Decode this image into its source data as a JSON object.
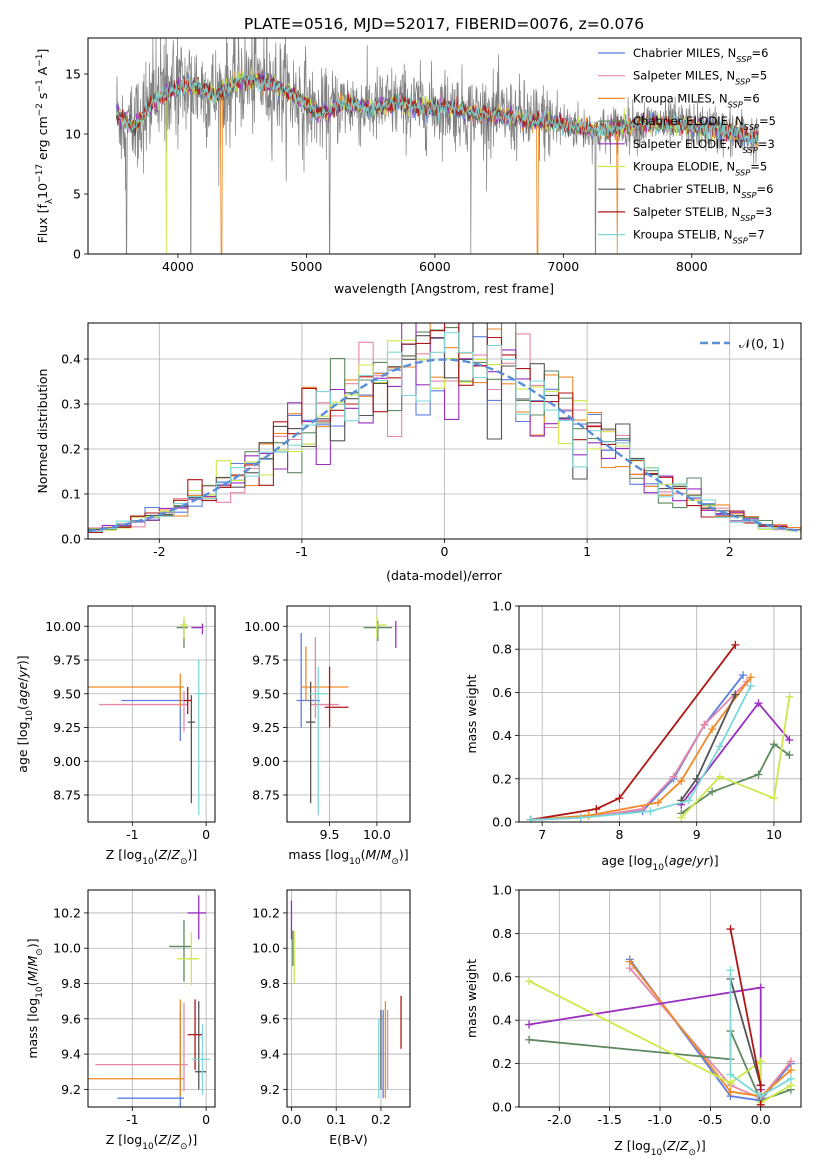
{
  "figure_title": "PLATE=0516, MJD=52017, FIBERID=0076, z=0.076",
  "series": [
    {
      "name": "Chabrier MILES",
      "nssp": "6",
      "color": "#5b7fe0"
    },
    {
      "name": "Salpeter MILES",
      "nssp": "5",
      "color": "#e887a8"
    },
    {
      "name": "Kroupa MILES",
      "nssp": "6",
      "color": "#f08a28"
    },
    {
      "name": "Chabrier ELODIE",
      "nssp": "5",
      "color": "#5e8a60"
    },
    {
      "name": "Salpeter ELODIE",
      "nssp": "3",
      "color": "#9a2fc0"
    },
    {
      "name": "Kroupa ELODIE",
      "nssp": "5",
      "color": "#cde84a"
    },
    {
      "name": "Chabrier STELIB",
      "nssp": "6",
      "color": "#555555"
    },
    {
      "name": "Salpeter STELIB",
      "nssp": "3",
      "color": "#b01616"
    },
    {
      "name": "Kroupa STELIB",
      "nssp": "7",
      "color": "#7fd8d8"
    }
  ],
  "chart_data": [
    {
      "id": "spectrum",
      "type": "line",
      "xlabel": "wavelength [Angstrom, rest frame]",
      "ylabel": "Flux [f_λ10^-17 erg cm^-2 s^-1 A^-1]",
      "xlim": [
        3300,
        8850
      ],
      "ylim": [
        0,
        18
      ],
      "xticks": [
        4000,
        5000,
        6000,
        7000,
        8000
      ],
      "yticks": [
        0,
        5,
        10,
        15
      ],
      "grid": false,
      "legend": "top-right",
      "legend_suffix": "N_SSP",
      "data_color": "#808080",
      "continuum": {
        "x": [
          3500,
          3650,
          3800,
          3950,
          4100,
          4300,
          4500,
          4700,
          4900,
          5100,
          5300,
          5500,
          5700,
          5900,
          6100,
          6300,
          6500,
          6700,
          6900,
          7100,
          7300,
          7500,
          7700,
          7900,
          8100,
          8300,
          8500
        ],
        "y": [
          12.0,
          10.5,
          12.6,
          13.6,
          14.2,
          13.2,
          14.6,
          14.3,
          13.2,
          11.7,
          12.6,
          12.1,
          12.6,
          12.2,
          12.3,
          11.7,
          11.6,
          11.2,
          11.0,
          10.6,
          10.2,
          10.7,
          10.9,
          10.7,
          10.5,
          10.2,
          9.6
        ]
      },
      "model_dips": [
        {
          "series": 2,
          "x": 4340
        },
        {
          "series": 2,
          "x": 6800
        },
        {
          "series": 2,
          "x": 7420
        },
        {
          "series": 5,
          "x": 3910
        }
      ],
      "data_dips": [
        3600,
        4100,
        5180,
        6280,
        7250
      ]
    },
    {
      "id": "residuals",
      "type": "step",
      "xlabel": "(data-model)/error",
      "ylabel": "Normed distribution",
      "xlim": [
        -2.5,
        2.5
      ],
      "ylim": [
        0,
        0.48
      ],
      "xticks": [
        -2,
        -1,
        0,
        1,
        2
      ],
      "yticks": [
        0.0,
        0.1,
        0.2,
        0.3,
        0.4
      ],
      "grid": true,
      "legend": "top-right",
      "reference_label": "𝒩(0, 1)",
      "reference_color": "#5b8fd8",
      "bin_width": 0.1
    },
    {
      "id": "age-z",
      "type": "errorbar",
      "xlabel": "Z [log10(Z/Z⊙)]",
      "ylabel": "age [log10(age/yr)]",
      "xlim": [
        -1.6,
        0.12
      ],
      "ylim": [
        8.55,
        10.15
      ],
      "xticks": [
        -1,
        0
      ],
      "yticks": [
        8.75,
        9.0,
        9.25,
        9.5,
        9.75,
        10.0
      ],
      "grid": true,
      "points": [
        {
          "x": -0.35,
          "xerr": [
            0.8,
            0.05
          ],
          "y": 9.45,
          "yerr": [
            0.3,
            0.1
          ]
        },
        {
          "x": -0.3,
          "xerr": [
            1.15,
            0.05
          ],
          "y": 9.42,
          "yerr": [
            0.2,
            0.1
          ]
        },
        {
          "x": -0.35,
          "xerr": [
            1.5,
            0.05
          ],
          "y": 9.55,
          "yerr": [
            0.15,
            0.1
          ]
        },
        {
          "x": -0.3,
          "xerr": [
            0.1,
            0.05
          ],
          "y": 9.99,
          "yerr": [
            0.15,
            0.05
          ]
        },
        {
          "x": -0.05,
          "xerr": [
            0.15,
            0.0
          ],
          "y": 9.99,
          "yerr": [
            0.05,
            0.03
          ]
        },
        {
          "x": -0.3,
          "xerr": [
            0.05,
            0.05
          ],
          "y": 10.01,
          "yerr": [
            0.1,
            0.06
          ]
        },
        {
          "x": -0.2,
          "xerr": [
            0.05,
            0.05
          ],
          "y": 9.29,
          "yerr": [
            0.6,
            0.2
          ]
        },
        {
          "x": -0.25,
          "xerr": [
            0.05,
            0.05
          ],
          "y": 9.45,
          "yerr": [
            0.1,
            0.1
          ]
        },
        {
          "x": -0.1,
          "xerr": [
            0.05,
            0.1
          ],
          "y": 9.5,
          "yerr": [
            0.9,
            0.25
          ]
        }
      ]
    },
    {
      "id": "age-mass",
      "type": "errorbar",
      "xlabel": "mass [log10(M/M⊙)]",
      "ylabel": "",
      "xlim": [
        9.05,
        10.35
      ],
      "ylim": [
        8.55,
        10.15
      ],
      "xticks": [
        9.5,
        10.0
      ],
      "yticks": [
        8.75,
        9.0,
        9.25,
        9.5,
        9.75,
        10.0
      ],
      "grid": true,
      "points": [
        {
          "x": 9.2,
          "xerr": [
            0.05,
            0.2
          ],
          "y": 9.45,
          "yerr": [
            0.2,
            0.5
          ]
        },
        {
          "x": 9.35,
          "xerr": [
            0.05,
            0.25
          ],
          "y": 9.42,
          "yerr": [
            0.1,
            0.5
          ]
        },
        {
          "x": 9.25,
          "xerr": [
            0.05,
            0.45
          ],
          "y": 9.55,
          "yerr": [
            0.1,
            0.3
          ]
        },
        {
          "x": 10.01,
          "xerr": [
            0.15,
            0.15
          ],
          "y": 9.99,
          "yerr": [
            0.1,
            0.05
          ]
        },
        {
          "x": 10.2,
          "xerr": [
            0.0,
            0.0
          ],
          "y": 9.99,
          "yerr": [
            0.15,
            0.05
          ]
        },
        {
          "x": 10.0,
          "xerr": [
            0.0,
            0.1
          ],
          "y": 10.01,
          "yerr": [
            0.1,
            0.06
          ]
        },
        {
          "x": 9.3,
          "xerr": [
            0.05,
            0.05
          ],
          "y": 9.29,
          "yerr": [
            0.6,
            0.3
          ]
        },
        {
          "x": 9.5,
          "xerr": [
            0.05,
            0.2
          ],
          "y": 9.4,
          "yerr": [
            0.15,
            0.3
          ]
        },
        {
          "x": 9.38,
          "xerr": [
            0.1,
            0.1
          ],
          "y": 9.5,
          "yerr": [
            0.9,
            0.2
          ]
        }
      ]
    },
    {
      "id": "weight-age",
      "type": "line",
      "xlabel": "age [log10(age/yr)]",
      "ylabel": "mass weight",
      "xlim": [
        6.7,
        10.35
      ],
      "ylim": [
        0,
        1.0
      ],
      "xticks": [
        7,
        8,
        9,
        10
      ],
      "yticks": [
        0.0,
        0.2,
        0.4,
        0.6,
        0.8,
        1.0
      ],
      "grid": true,
      "series_points": [
        {
          "x": [
            6.85,
            7.5,
            8.3,
            8.7,
            9.1,
            9.6
          ],
          "y": [
            0.01,
            0.02,
            0.05,
            0.2,
            0.45,
            0.68
          ]
        },
        {
          "x": [
            6.85,
            7.5,
            8.3,
            8.7,
            9.1,
            9.65
          ],
          "y": [
            0.01,
            0.02,
            0.06,
            0.21,
            0.45,
            0.65
          ]
        },
        {
          "x": [
            6.85,
            7.6,
            8.5,
            8.8,
            9.2,
            9.7
          ],
          "y": [
            0.01,
            0.03,
            0.09,
            0.19,
            0.43,
            0.67
          ]
        },
        {
          "x": [
            8.8,
            9.2,
            9.8,
            10.0,
            10.2
          ],
          "y": [
            0.04,
            0.14,
            0.22,
            0.36,
            0.31
          ]
        },
        {
          "x": [
            8.8,
            9.8,
            10.2
          ],
          "y": [
            0.08,
            0.55,
            0.38
          ]
        },
        {
          "x": [
            8.8,
            9.3,
            10.0,
            10.2
          ],
          "y": [
            0.02,
            0.21,
            0.11,
            0.58
          ]
        },
        {
          "x": [
            8.8,
            9.0,
            9.5
          ],
          "y": [
            0.1,
            0.2,
            0.59
          ]
        },
        {
          "x": [
            6.85,
            7.7,
            8.0,
            9.5
          ],
          "y": [
            0.01,
            0.06,
            0.11,
            0.82
          ]
        },
        {
          "x": [
            6.85,
            7.5,
            8.4,
            8.9,
            9.3,
            9.7
          ],
          "y": [
            0.01,
            0.02,
            0.05,
            0.1,
            0.35,
            0.63
          ]
        }
      ]
    },
    {
      "id": "mass-z",
      "type": "errorbar",
      "xlabel": "Z [log10(Z/Z⊙)]",
      "ylabel": "mass [log10(M/M⊙)]",
      "xlim": [
        -1.6,
        0.12
      ],
      "ylim": [
        9.1,
        10.33
      ],
      "xticks": [
        -1,
        0
      ],
      "yticks": [
        9.2,
        9.4,
        9.6,
        9.8,
        10.0,
        10.2
      ],
      "grid": true,
      "points": [
        {
          "x": -0.35,
          "xerr": [
            0.85,
            0.05
          ],
          "y": 9.15,
          "yerr": [
            0.05,
            0.5
          ]
        },
        {
          "x": -0.3,
          "xerr": [
            1.2,
            0.05
          ],
          "y": 9.34,
          "yerr": [
            0.15,
            0.35
          ]
        },
        {
          "x": -0.35,
          "xerr": [
            1.5,
            0.05
          ],
          "y": 9.26,
          "yerr": [
            0.1,
            0.45
          ]
        },
        {
          "x": -0.3,
          "xerr": [
            0.2,
            0.1
          ],
          "y": 10.01,
          "yerr": [
            0.2,
            0.15
          ]
        },
        {
          "x": -0.1,
          "xerr": [
            0.15,
            0.1
          ],
          "y": 10.2,
          "yerr": [
            0.15,
            0.1
          ]
        },
        {
          "x": -0.2,
          "xerr": [
            0.2,
            0.1
          ],
          "y": 9.94,
          "yerr": [
            0.15,
            0.15
          ]
        },
        {
          "x": -0.1,
          "xerr": [
            0.05,
            0.1
          ],
          "y": 9.3,
          "yerr": [
            0.1,
            0.4
          ]
        },
        {
          "x": -0.15,
          "xerr": [
            0.1,
            0.1
          ],
          "y": 9.51,
          "yerr": [
            0.2,
            0.2
          ]
        },
        {
          "x": -0.05,
          "xerr": [
            0.15,
            0.1
          ],
          "y": 9.37,
          "yerr": [
            0.2,
            0.2
          ]
        }
      ]
    },
    {
      "id": "mass-ebv",
      "type": "errorbar",
      "xlabel": "E(B-V)",
      "ylabel": "",
      "xlim": [
        -0.01,
        0.265
      ],
      "ylim": [
        9.1,
        10.33
      ],
      "xticks": [
        0.0,
        0.1,
        0.2
      ],
      "yticks": [
        9.2,
        9.4,
        9.6,
        9.8,
        10.0,
        10.2
      ],
      "grid": true,
      "points": [
        {
          "x": 0.205,
          "xerr": [
            0.0,
            0.0
          ],
          "y": 9.4,
          "yerr": [
            0.25,
            0.25
          ]
        },
        {
          "x": 0.215,
          "xerr": [
            0.0,
            0.0
          ],
          "y": 9.45,
          "yerr": [
            0.25,
            0.2
          ]
        },
        {
          "x": 0.21,
          "xerr": [
            0.0,
            0.0
          ],
          "y": 9.45,
          "yerr": [
            0.3,
            0.25
          ]
        },
        {
          "x": 0.003,
          "xerr": [
            0.0,
            0.0
          ],
          "y": 10.0,
          "yerr": [
            0.1,
            0.1
          ]
        },
        {
          "x": 0.0,
          "xerr": [
            0.0,
            0.0
          ],
          "y": 10.15,
          "yerr": [
            0.1,
            0.12
          ]
        },
        {
          "x": 0.006,
          "xerr": [
            0.0,
            0.0
          ],
          "y": 9.95,
          "yerr": [
            0.15,
            0.15
          ]
        },
        {
          "x": 0.2,
          "xerr": [
            0.0,
            0.0
          ],
          "y": 9.4,
          "yerr": [
            0.2,
            0.25
          ]
        },
        {
          "x": 0.245,
          "xerr": [
            0.0,
            0.0
          ],
          "y": 9.58,
          "yerr": [
            0.15,
            0.15
          ]
        },
        {
          "x": 0.195,
          "xerr": [
            0.0,
            0.0
          ],
          "y": 9.4,
          "yerr": [
            0.25,
            0.2
          ]
        }
      ]
    },
    {
      "id": "weight-z",
      "type": "line",
      "xlabel": "Z [log10(Z/Z⊙)]",
      "ylabel": "mass weight",
      "xlim": [
        -2.4,
        0.4
      ],
      "ylim": [
        0,
        1.0
      ],
      "xticks": [
        -2.0,
        -1.5,
        -1.0,
        -0.5,
        0.0
      ],
      "yticks": [
        0.0,
        0.2,
        0.4,
        0.6,
        0.8,
        1.0
      ],
      "grid": true,
      "series_points": [
        {
          "x": [
            -1.3,
            -0.3,
            0.0,
            0.3
          ],
          "y": [
            0.68,
            0.05,
            0.03,
            0.2
          ]
        },
        {
          "x": [
            -1.3,
            -0.3,
            0.0,
            0.3
          ],
          "y": [
            0.64,
            0.1,
            0.04,
            0.21
          ]
        },
        {
          "x": [
            -1.3,
            -0.3,
            0.0,
            0.3
          ],
          "y": [
            0.67,
            0.07,
            0.05,
            0.17
          ]
        },
        {
          "x": [
            -2.3,
            -0.3,
            -0.3,
            0.0,
            0.3
          ],
          "y": [
            0.31,
            0.22,
            0.35,
            0.03,
            0.08
          ]
        },
        {
          "x": [
            -2.3,
            0.0,
            0.0
          ],
          "y": [
            0.38,
            0.55,
            0.08
          ]
        },
        {
          "x": [
            -2.3,
            -0.3,
            0.0,
            0.0,
            0.3
          ],
          "y": [
            0.58,
            0.11,
            0.21,
            0.02,
            0.1
          ]
        },
        {
          "x": [
            -0.3,
            0.0
          ],
          "y": [
            0.59,
            0.1
          ]
        },
        {
          "x": [
            -0.3,
            0.0,
            0.0
          ],
          "y": [
            0.82,
            0.1,
            0.01
          ]
        },
        {
          "x": [
            -0.3,
            -0.3,
            0.0,
            0.3
          ],
          "y": [
            0.63,
            0.15,
            0.05,
            0.13
          ]
        }
      ]
    }
  ]
}
